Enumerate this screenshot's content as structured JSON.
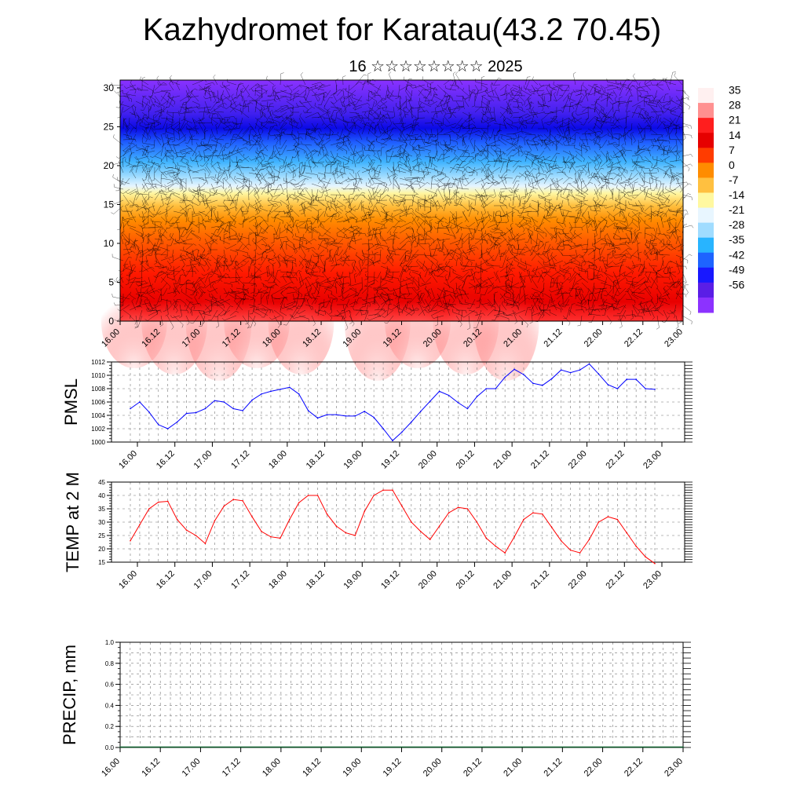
{
  "header": {
    "title": "Kazhydromet for Karatau(43.2 70.45)",
    "subtitle": "16 ☆☆☆☆☆☆☆☆ 2025"
  },
  "time_labels": [
    "16.00",
    "16.12",
    "17.00",
    "17.12",
    "18.00",
    "18.12",
    "19.00",
    "19.12",
    "20.00",
    "20.12",
    "21.00",
    "21.12",
    "22.00",
    "22.12",
    "23.00"
  ],
  "colorbar": {
    "labels": [
      "35",
      "28",
      "21",
      "14",
      "7",
      "0",
      "-7",
      "-14",
      "-21",
      "-28",
      "-35",
      "-42",
      "-49",
      "-56"
    ],
    "colors": [
      "#fff0f0",
      "#ff9090",
      "#ff1e1e",
      "#e60000",
      "#ff3c00",
      "#ff8c00",
      "#ffc040",
      "#fff8a0",
      "#e8f6ff",
      "#a0dcff",
      "#28b4ff",
      "#1e64ff",
      "#1818ff",
      "#5a1ee6",
      "#8c32ff"
    ]
  },
  "chart_data": [
    {
      "type": "heatmap",
      "name": "temperature-wind-profile",
      "y_ticks": [
        "0",
        "5",
        "10",
        "15",
        "20",
        "25",
        "30"
      ],
      "ylim": [
        0,
        31
      ],
      "x_categories": [
        "16.00",
        "16.12",
        "17.00",
        "17.12",
        "18.00",
        "18.12",
        "19.00",
        "19.12",
        "20.00",
        "20.12",
        "21.00",
        "21.12",
        "22.00",
        "22.12",
        "23.00"
      ],
      "value_range": [
        -56,
        35
      ]
    },
    {
      "type": "line",
      "ylabel": "PMSL",
      "ylim": [
        1000,
        1012
      ],
      "y_ticks": [
        "1000",
        "1002",
        "1004",
        "1006",
        "1008",
        "1010",
        "1012"
      ],
      "color": "#0000ff",
      "x_start": "16.00",
      "x_step_hours": 3,
      "values": [
        1005.0,
        1006.0,
        1004.5,
        1002.6,
        1002.0,
        1003.0,
        1004.3,
        1004.4,
        1005.0,
        1006.2,
        1006.0,
        1005.0,
        1004.7,
        1006.3,
        1007.2,
        1007.6,
        1007.9,
        1008.2,
        1007.2,
        1004.7,
        1003.6,
        1004.1,
        1004.1,
        1003.9,
        1003.9,
        1004.6,
        1003.7,
        1002.0,
        1000.2,
        1001.5,
        1003.0,
        1004.6,
        1006.1,
        1007.6,
        1007.0,
        1005.9,
        1005.0,
        1006.8,
        1008.0,
        1008.0,
        1009.7,
        1010.9,
        1010.1,
        1008.8,
        1008.5,
        1009.5,
        1010.8,
        1010.4,
        1010.8,
        1011.7,
        1010.2,
        1008.6,
        1008.0,
        1009.4,
        1009.4,
        1008.0,
        1007.9
      ]
    },
    {
      "type": "line",
      "ylabel": "TEMP at 2 M",
      "ylim": [
        15,
        45
      ],
      "y_ticks": [
        "15",
        "20",
        "25",
        "30",
        "35",
        "40",
        "45"
      ],
      "color": "#ff0000",
      "x_start": "16.00",
      "x_step_hours": 3,
      "values": [
        23,
        29,
        35,
        37.5,
        37.8,
        31,
        27,
        25,
        22,
        30.5,
        36,
        38.5,
        38,
        32,
        26.5,
        24.5,
        24,
        31,
        37.3,
        40,
        40,
        33,
        28.5,
        26,
        25,
        34,
        40,
        42,
        42,
        36,
        30,
        26.5,
        23.5,
        28.5,
        33.5,
        35.5,
        35,
        30,
        24,
        21,
        18.5,
        24.5,
        31,
        33.5,
        33,
        28,
        23,
        19.5,
        18.5,
        23.5,
        30,
        32,
        31,
        26,
        21,
        17,
        14.5
      ]
    },
    {
      "type": "bar",
      "ylabel": "PRECIP, mm",
      "ylim": [
        0,
        1
      ],
      "y_ticks": [
        "0.0",
        "0.2",
        "0.4",
        "0.6",
        "0.8",
        "1.0"
      ],
      "values": [
        0,
        0,
        0,
        0,
        0,
        0,
        0,
        0,
        0,
        0,
        0,
        0,
        0,
        0,
        0,
        0,
        0,
        0,
        0,
        0,
        0,
        0,
        0,
        0,
        0,
        0,
        0,
        0,
        0,
        0,
        0,
        0,
        0,
        0,
        0,
        0,
        0,
        0,
        0,
        0,
        0,
        0,
        0,
        0,
        0,
        0,
        0,
        0,
        0,
        0,
        0,
        0,
        0,
        0,
        0,
        0,
        0
      ]
    }
  ]
}
